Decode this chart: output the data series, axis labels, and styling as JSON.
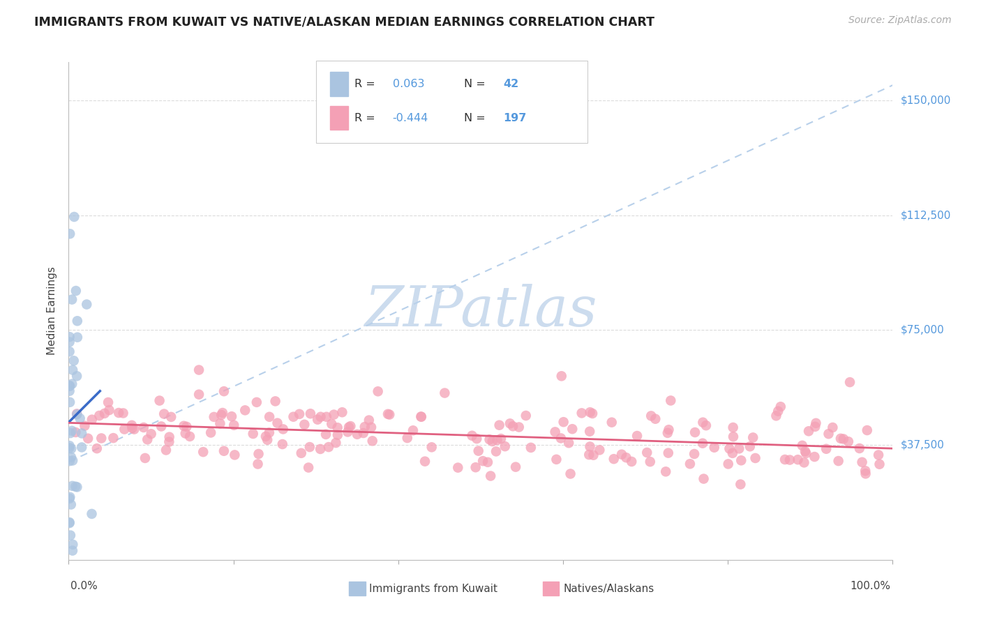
{
  "title": "IMMIGRANTS FROM KUWAIT VS NATIVE/ALASKAN MEDIAN EARNINGS CORRELATION CHART",
  "source": "Source: ZipAtlas.com",
  "ylabel": "Median Earnings",
  "ytick_labels": [
    "$37,500",
    "$75,000",
    "$112,500",
    "$150,000"
  ],
  "ytick_values": [
    37500,
    75000,
    112500,
    150000
  ],
  "ymin": 0,
  "ymax": 162500,
  "xmin": 0.0,
  "xmax": 1.0,
  "legend_r_kuwait": "0.063",
  "legend_n_kuwait": "42",
  "legend_r_native": "-0.444",
  "legend_n_native": "197",
  "kuwait_color": "#aac4e0",
  "native_color": "#f4a0b5",
  "kuwait_line_color": "#3a6bc8",
  "native_line_color": "#e06080",
  "dashed_line_color": "#b8d0ea",
  "watermark_color": "#ccdcee",
  "background_color": "#ffffff",
  "grid_color": "#d8d8d8",
  "legend_edge_color": "#cccccc",
  "ytick_color": "#5599dd",
  "title_color": "#222222",
  "source_color": "#aaaaaa",
  "label_color": "#444444"
}
